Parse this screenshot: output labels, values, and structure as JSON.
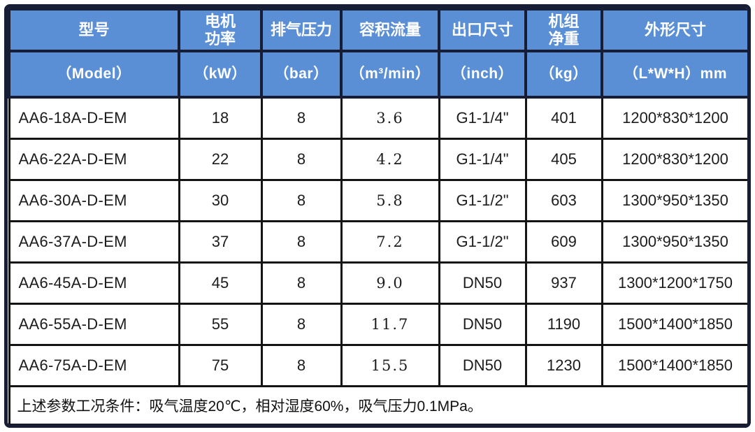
{
  "colors": {
    "header_bg": "#5A8FD6",
    "header_text": "#FFFFFF",
    "outer_border": "#161D35",
    "grid_border": "#141414",
    "cell_bg": "#FFFFFF"
  },
  "table": {
    "header": {
      "titles": [
        "型号",
        "电机\n功率",
        "排气压力",
        "容积流量",
        "出口尺寸",
        "机组\n净重",
        "外形尺寸"
      ],
      "units": [
        "（Model）",
        "（kW）",
        "（bar）",
        "（m³/min）",
        "（inch）",
        "（kg）",
        "（L*W*H）mm"
      ]
    },
    "rows": [
      {
        "model": "AA6-18A-D-EM",
        "power_kw": "18",
        "pressure_bar": "8",
        "flow_m3min": "3.6",
        "outlet": "G1-1/4\"",
        "weight_kg": "401",
        "dimensions": "1200*830*1200"
      },
      {
        "model": "AA6-22A-D-EM",
        "power_kw": "22",
        "pressure_bar": "8",
        "flow_m3min": "4.2",
        "outlet": "G1-1/4\"",
        "weight_kg": "405",
        "dimensions": "1200*830*1200"
      },
      {
        "model": "AA6-30A-D-EM",
        "power_kw": "30",
        "pressure_bar": "8",
        "flow_m3min": "5.8",
        "outlet": "G1-1/2\"",
        "weight_kg": "603",
        "dimensions": "1300*950*1350"
      },
      {
        "model": "AA6-37A-D-EM",
        "power_kw": "37",
        "pressure_bar": "8",
        "flow_m3min": "7.2",
        "outlet": "G1-1/2\"",
        "weight_kg": "609",
        "dimensions": "1300*950*1350"
      },
      {
        "model": "AA6-45A-D-EM",
        "power_kw": "45",
        "pressure_bar": "8",
        "flow_m3min": "9.0",
        "outlet": "DN50",
        "weight_kg": "937",
        "dimensions": "1300*1200*1750"
      },
      {
        "model": "AA6-55A-D-EM",
        "power_kw": "55",
        "pressure_bar": "8",
        "flow_m3min": "11.7",
        "outlet": "DN50",
        "weight_kg": "1190",
        "dimensions": "1500*1400*1850"
      },
      {
        "model": "AA6-75A-D-EM",
        "power_kw": "75",
        "pressure_bar": "8",
        "flow_m3min": "15.5",
        "outlet": "DN50",
        "weight_kg": "1230",
        "dimensions": "1500*1400*1850"
      }
    ],
    "footnote": "上述参数工况条件：吸气温度20℃，相对湿度60%，吸气压力0.1MPa。"
  }
}
